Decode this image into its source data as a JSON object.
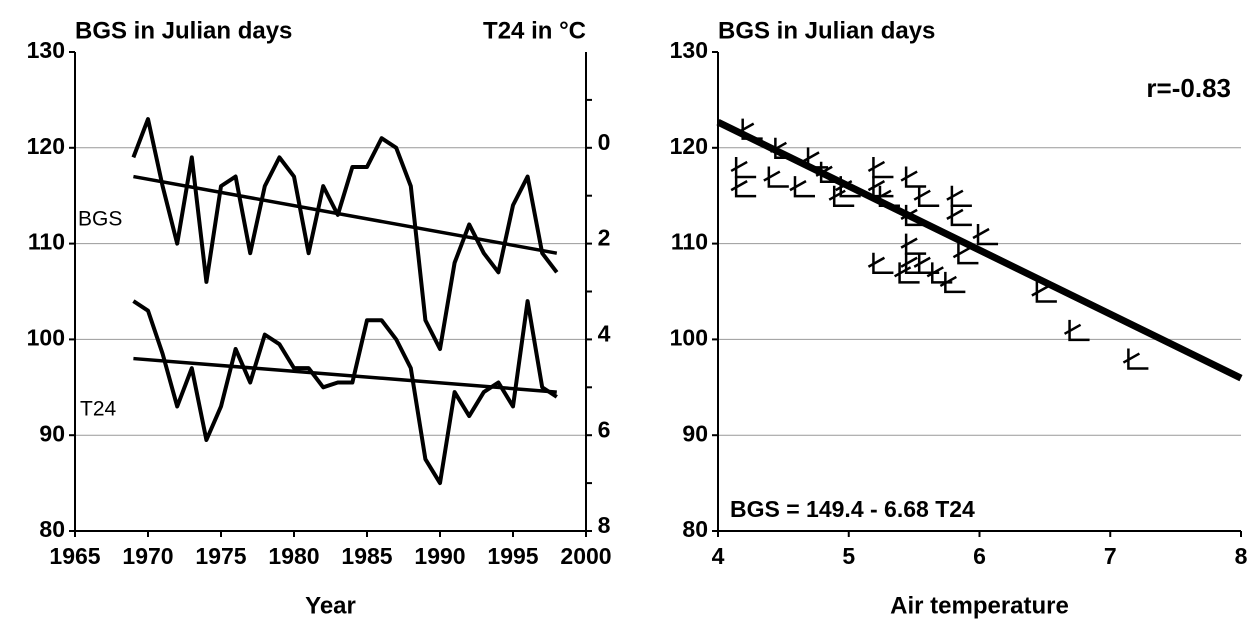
{
  "chart_data": [
    {
      "type": "line",
      "ylabel": "BGS in Julian days",
      "y2label": "T24 in °C",
      "xlabel": "Year",
      "x": [
        1969,
        1970,
        1971,
        1972,
        1973,
        1974,
        1975,
        1976,
        1977,
        1978,
        1979,
        1980,
        1981,
        1982,
        1983,
        1984,
        1985,
        1986,
        1987,
        1988,
        1989,
        1990,
        1991,
        1992,
        1993,
        1994,
        1995,
        1996,
        1997,
        1998
      ],
      "series": [
        {
          "name": "BGS",
          "color": "#000000",
          "values": [
            119,
            123,
            116,
            110,
            119,
            106,
            116,
            117,
            109,
            116,
            119,
            117,
            109,
            116,
            113,
            118,
            118,
            121,
            120,
            116,
            102,
            99,
            108,
            112,
            109,
            107,
            114,
            117,
            109,
            107
          ],
          "trend": [
            117,
            109
          ]
        },
        {
          "name": "T24",
          "color": "#000000",
          "axis": "y2",
          "values": [
            3.2,
            3.4,
            4.3,
            5.4,
            4.6,
            6.1,
            5.4,
            4.2,
            4.9,
            3.9,
            4.1,
            4.6,
            4.6,
            5.0,
            4.9,
            4.9,
            3.6,
            3.6,
            4.0,
            4.6,
            6.5,
            7.0,
            5.1,
            5.6,
            5.1,
            4.9,
            5.4,
            3.2,
            5.0,
            5.2
          ],
          "trend": [
            4.4,
            5.1
          ]
        }
      ],
      "trend_x": [
        1969,
        1998
      ],
      "xlim": [
        1965,
        2000
      ],
      "xticks": [
        1965,
        1970,
        1975,
        1980,
        1985,
        1990,
        1995,
        2000
      ],
      "ylim": [
        80,
        130
      ],
      "yticks": [
        80,
        90,
        100,
        110,
        120,
        130
      ],
      "y2lim": [
        8,
        -2
      ],
      "y2ticks": [
        0,
        2,
        4,
        6,
        8
      ],
      "y2minor": [
        -1,
        1,
        3,
        5,
        7
      ],
      "grid": true
    },
    {
      "type": "scatter",
      "ylabel": "BGS in Julian days",
      "xlabel": "Air temperature",
      "x": [
        4.25,
        4.5,
        4.75,
        4.85,
        5.0,
        4.2,
        4.2,
        4.45,
        4.65,
        4.95,
        5.25,
        5.25,
        5.3,
        5.5,
        5.6,
        5.5,
        5.85,
        5.85,
        6.05,
        5.9,
        5.25,
        5.45,
        5.5,
        5.6,
        5.7,
        5.8,
        6.5,
        6.75,
        7.2,
        5.5
      ],
      "values": [
        122,
        120,
        119,
        117.5,
        116,
        118,
        116,
        117,
        116,
        115,
        118,
        116,
        115,
        117,
        115,
        113,
        115,
        113,
        111,
        109,
        108,
        107,
        108,
        108,
        107,
        106,
        105,
        101,
        98,
        110
      ],
      "color": "#000000",
      "fit": {
        "intercept": 149.4,
        "slope": -6.68
      },
      "annotations": [
        "r=-0.83",
        "BGS = 149.4 - 6.68 T24"
      ],
      "xlim": [
        4,
        8
      ],
      "xticks": [
        4,
        5,
        6,
        7,
        8
      ],
      "ylim": [
        80,
        130
      ],
      "yticks": [
        80,
        90,
        100,
        110,
        120,
        130
      ],
      "grid": true
    }
  ]
}
